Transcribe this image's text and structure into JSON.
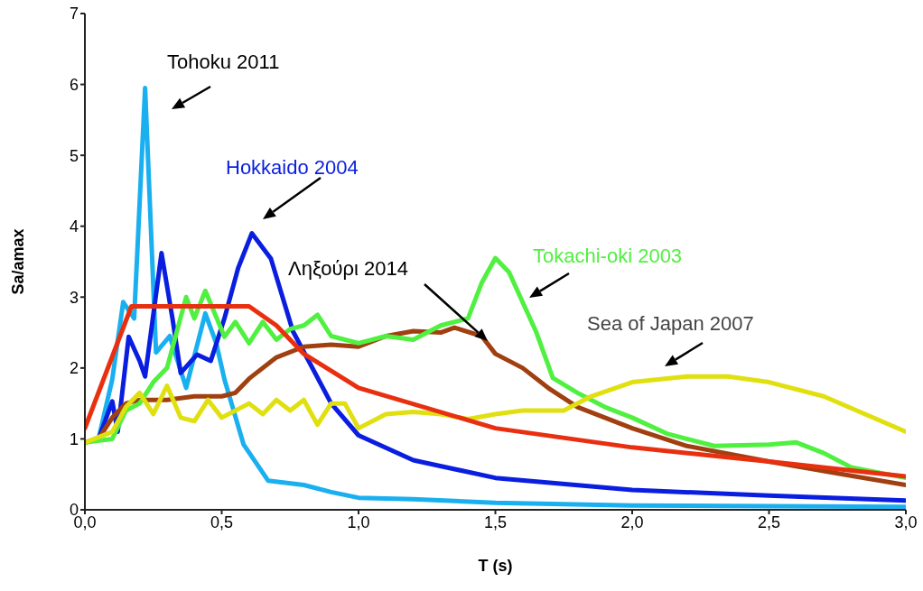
{
  "chart_data": {
    "type": "line",
    "xlabel": "T  (s)",
    "ylabel": "Sa/amax",
    "xlim": [
      0,
      3
    ],
    "xticks": [
      {
        "value": 0,
        "label": "0,0"
      },
      {
        "value": 0.5,
        "label": "0,5"
      },
      {
        "value": 1,
        "label": "1,0"
      },
      {
        "value": 1.5,
        "label": "1,5"
      },
      {
        "value": 2,
        "label": "2,0"
      },
      {
        "value": 2.5,
        "label": "2,5"
      },
      {
        "value": 3,
        "label": "3,0"
      }
    ],
    "ylim": [
      0,
      7
    ],
    "yticks": [
      0,
      1,
      2,
      3,
      4,
      5,
      6,
      7
    ],
    "grid": false,
    "legend": false,
    "series": [
      {
        "name": "Tohoku 2011",
        "color": "#1ab0f0",
        "x": [
          0,
          0.05,
          0.1,
          0.14,
          0.18,
          0.22,
          0.26,
          0.31,
          0.37,
          0.44,
          0.48,
          0.51,
          0.58,
          0.67,
          0.8,
          0.9,
          1.0,
          1.2,
          1.5,
          2.0,
          3.0
        ],
        "values": [
          0.95,
          1.0,
          1.84,
          2.93,
          2.7,
          5.95,
          2.22,
          2.45,
          1.72,
          2.77,
          2.35,
          1.84,
          0.92,
          0.41,
          0.35,
          0.25,
          0.17,
          0.15,
          0.1,
          0.06,
          0.04
        ]
      },
      {
        "name": "Hokkaido 2004",
        "color": "#0a1ee0",
        "x": [
          0,
          0.05,
          0.1,
          0.12,
          0.16,
          0.2,
          0.22,
          0.28,
          0.32,
          0.35,
          0.41,
          0.46,
          0.51,
          0.56,
          0.61,
          0.68,
          0.76,
          0.9,
          1.0,
          1.2,
          1.5,
          2.0,
          2.5,
          3.0
        ],
        "values": [
          0.95,
          1.0,
          1.53,
          1.1,
          2.44,
          2.1,
          1.88,
          3.62,
          2.7,
          1.93,
          2.19,
          2.1,
          2.7,
          3.41,
          3.9,
          3.54,
          2.52,
          1.5,
          1.05,
          0.7,
          0.45,
          0.28,
          0.2,
          0.13
        ]
      },
      {
        "name": "Ληξούρι 2014",
        "color": "#a04010",
        "x": [
          0,
          0.05,
          0.1,
          0.15,
          0.2,
          0.3,
          0.4,
          0.5,
          0.55,
          0.6,
          0.7,
          0.8,
          0.9,
          1.0,
          1.1,
          1.2,
          1.3,
          1.35,
          1.45,
          1.5,
          1.6,
          1.7,
          1.8,
          2.0,
          2.2,
          2.5,
          2.8,
          3.0
        ],
        "values": [
          0.95,
          1.0,
          1.3,
          1.5,
          1.55,
          1.55,
          1.6,
          1.6,
          1.65,
          1.85,
          2.15,
          2.3,
          2.33,
          2.3,
          2.45,
          2.52,
          2.5,
          2.57,
          2.45,
          2.2,
          2.0,
          1.7,
          1.45,
          1.15,
          0.9,
          0.68,
          0.48,
          0.35
        ]
      },
      {
        "name": "Tokachi-oki 2003",
        "color": "#50f040",
        "x": [
          0,
          0.1,
          0.15,
          0.2,
          0.25,
          0.3,
          0.37,
          0.4,
          0.44,
          0.51,
          0.55,
          0.6,
          0.65,
          0.7,
          0.75,
          0.8,
          0.85,
          0.9,
          1.0,
          1.1,
          1.2,
          1.3,
          1.4,
          1.45,
          1.5,
          1.55,
          1.65,
          1.71,
          1.8,
          1.9,
          2.0,
          2.13,
          2.3,
          2.5,
          2.6,
          2.7,
          2.8,
          3.0
        ],
        "values": [
          0.95,
          1.0,
          1.4,
          1.5,
          1.8,
          2.0,
          3.0,
          2.7,
          3.09,
          2.44,
          2.65,
          2.35,
          2.65,
          2.4,
          2.55,
          2.6,
          2.75,
          2.45,
          2.35,
          2.45,
          2.4,
          2.6,
          2.7,
          3.2,
          3.55,
          3.35,
          2.5,
          1.86,
          1.65,
          1.45,
          1.3,
          1.07,
          0.9,
          0.92,
          0.95,
          0.8,
          0.6,
          0.45
        ]
      },
      {
        "name": "Sea of Japan 2007",
        "color": "#e0e010",
        "x": [
          0,
          0.1,
          0.15,
          0.2,
          0.25,
          0.3,
          0.35,
          0.4,
          0.45,
          0.5,
          0.6,
          0.65,
          0.7,
          0.75,
          0.8,
          0.85,
          0.9,
          0.95,
          1.0,
          1.1,
          1.2,
          1.3,
          1.4,
          1.5,
          1.6,
          1.75,
          1.85,
          2.0,
          2.2,
          2.35,
          2.5,
          2.7,
          3.0
        ],
        "values": [
          0.95,
          1.1,
          1.45,
          1.65,
          1.35,
          1.75,
          1.3,
          1.25,
          1.55,
          1.3,
          1.5,
          1.35,
          1.55,
          1.4,
          1.55,
          1.2,
          1.5,
          1.5,
          1.15,
          1.35,
          1.38,
          1.35,
          1.28,
          1.35,
          1.4,
          1.4,
          1.6,
          1.8,
          1.88,
          1.88,
          1.8,
          1.6,
          1.1
        ]
      },
      {
        "color": "#e83010",
        "x": [
          0,
          0.17,
          0.6,
          0.7,
          0.8,
          1.0,
          1.5,
          2.0,
          2.5,
          3.0
        ],
        "values": [
          1.15,
          2.87,
          2.87,
          2.6,
          2.2,
          1.72,
          1.15,
          0.88,
          0.68,
          0.47
        ]
      }
    ]
  }
}
